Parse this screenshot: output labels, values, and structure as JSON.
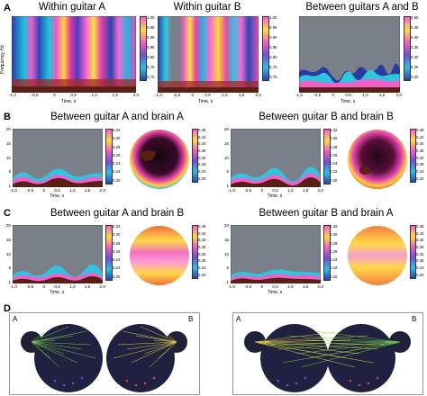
{
  "panel_labels": {
    "a": "A",
    "b": "B",
    "c": "C",
    "d": "D"
  },
  "row_a": {
    "titles": [
      "Within guitar A",
      "Within guitar B",
      "Between guitars A and B"
    ],
    "ylabel": "Frequency, Hz",
    "xlabel": "Time, s",
    "xticks": [
      "-1,0",
      "-0,5",
      "0",
      "0,5",
      "1,0",
      "1,5",
      "2,0"
    ],
    "yticks": [
      "20",
      "15",
      "10",
      "5",
      "1"
    ],
    "colorbars": [
      [
        "1,00",
        "0,95",
        "0,90",
        "0,85",
        "0,80",
        "0,75",
        "0,70"
      ],
      [
        "1,00",
        "0,95",
        "0,90",
        "0,85",
        "0,80",
        "0,75",
        "0,70"
      ],
      [
        "0,50",
        "0,45",
        "0,40",
        "0,35",
        "0,30",
        "0,25",
        "0,20"
      ]
    ]
  },
  "row_b": {
    "titles": [
      "Between guitar A and brain A",
      "Between guitar B and brain B"
    ],
    "colorbar": [
      "0,32",
      "0,30",
      "0,28",
      "0,26",
      "0,24",
      "0,22",
      "0,20"
    ],
    "topo_colorbar": [
      "0,48",
      "0,44",
      "0,40",
      "0,36",
      "0,32",
      "0,28",
      "0,24",
      "0,20"
    ]
  },
  "row_c": {
    "titles": [
      "Between guitar A and brain B",
      "Between guitar B and brain A"
    ],
    "colorbar": [
      "0,32",
      "0,30",
      "0,28",
      "0,26",
      "0,24",
      "0,22",
      "0,20"
    ],
    "topo_colorbar": [
      "0,48",
      "0,44",
      "0,40",
      "0,36",
      "0,32",
      "0,28",
      "0,24",
      "0,20"
    ]
  },
  "row_d": {
    "labels_left": [
      "A",
      "B"
    ],
    "labels_right": [
      "A",
      "B"
    ]
  },
  "colors": {
    "background_plot": "#7a8089",
    "accent_dark": "#5a1f12"
  }
}
